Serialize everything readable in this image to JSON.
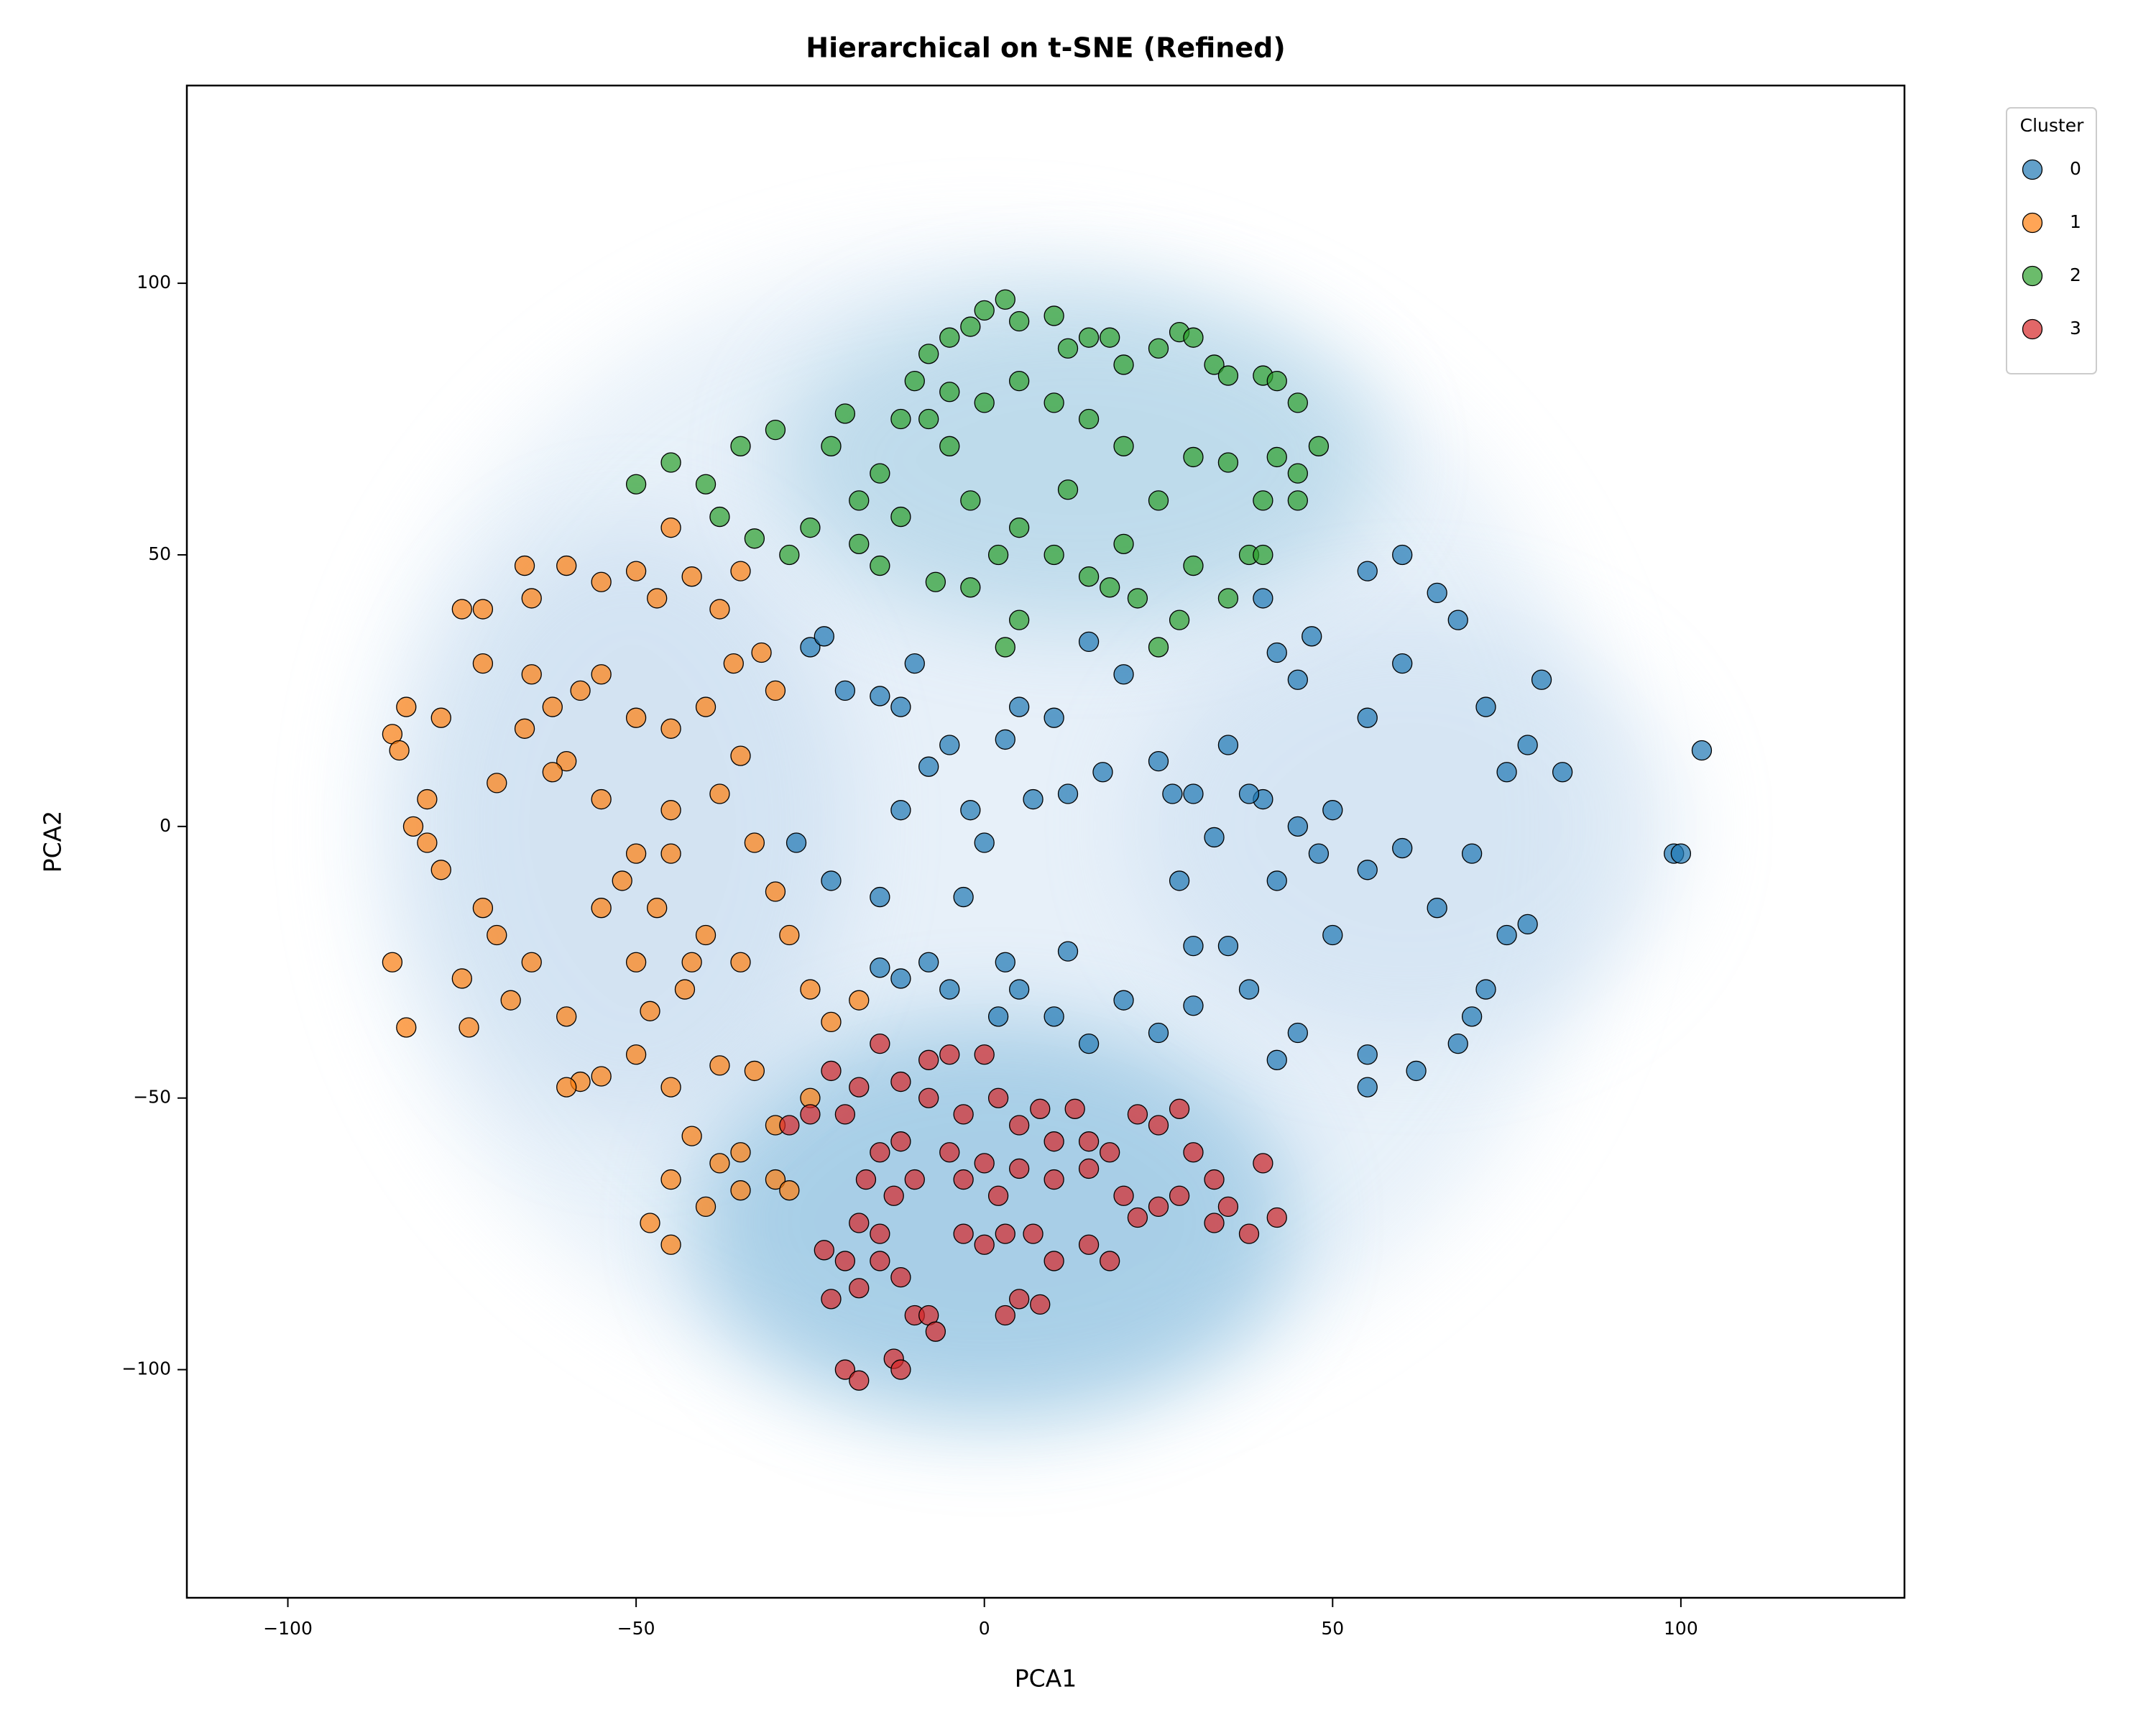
{
  "chart_data": {
    "type": "scatter",
    "title": "Hierarchical on t-SNE (Refined)",
    "x_label": "PCA1",
    "y_label": "PCA2",
    "legend_title": "Cluster",
    "legend": "outside upper right",
    "xlim": [
      -114.5,
      132.1
    ],
    "ylim": [
      -142,
      136.4
    ],
    "xticks": [
      {
        "value": -100,
        "label": "−100"
      },
      {
        "value": -50,
        "label": "−50"
      },
      0,
      50,
      100
    ],
    "yticks": [
      {
        "value": -100,
        "label": "−100"
      },
      {
        "value": -50,
        "label": "−50"
      },
      0,
      50,
      100
    ],
    "series": [
      {
        "name": "0",
        "color": "#1f77b4",
        "x": [
          -25,
          -23,
          -20,
          -15,
          -10,
          -12,
          -5,
          -8,
          -2,
          -12,
          -27,
          -22,
          -15,
          -8,
          -12,
          -5,
          3,
          5,
          12,
          10,
          15,
          20,
          25,
          30,
          35,
          28,
          33,
          40,
          45,
          48,
          42,
          50,
          55,
          60,
          65,
          70,
          75,
          78,
          72,
          68,
          55,
          55,
          62,
          70,
          60,
          55,
          60,
          65,
          68,
          72,
          78,
          75,
          83,
          80,
          99,
          100,
          103,
          45,
          47,
          40,
          42,
          20,
          15,
          5,
          10,
          3,
          7,
          0,
          12,
          17,
          25,
          27,
          30,
          35,
          38,
          30,
          38,
          45,
          42,
          -3,
          2,
          -15,
          55,
          50
        ],
        "values": [
          33,
          35,
          25,
          24,
          30,
          22,
          15,
          11,
          3,
          3,
          -3,
          -10,
          -13,
          -25,
          -28,
          -30,
          -25,
          -30,
          -23,
          -35,
          -40,
          -32,
          -38,
          -22,
          -22,
          -10,
          -2,
          5,
          0,
          -5,
          -10,
          -20,
          -8,
          -4,
          -15,
          -5,
          -20,
          -18,
          -30,
          -40,
          -42,
          -48,
          -45,
          -35,
          30,
          47,
          50,
          43,
          38,
          22,
          15,
          10,
          10,
          27,
          -5,
          -5,
          14,
          27,
          35,
          42,
          32,
          28,
          34,
          22,
          20,
          16,
          5,
          -3,
          6,
          10,
          12,
          6,
          6,
          15,
          6,
          -33,
          -30,
          -38,
          -43,
          -13,
          -35,
          -26,
          20,
          3
        ]
      },
      {
        "name": "1",
        "color": "#ff7f0e",
        "x": [
          -85,
          -83,
          -84,
          -80,
          -82,
          -78,
          -85,
          -83,
          -75,
          -72,
          -74,
          -68,
          -70,
          -65,
          -60,
          -58,
          -55,
          -60,
          -50,
          -45,
          -43,
          -47,
          -40,
          -35,
          -30,
          -28,
          -25,
          -22,
          -33,
          -38,
          -42,
          -45,
          -48,
          -45,
          -40,
          -35,
          -30,
          -35,
          -30,
          -38,
          -28,
          -25,
          -18,
          -33,
          -38,
          -45,
          -50,
          -52,
          -55,
          -60,
          -62,
          -66,
          -70,
          -72,
          -75,
          -72,
          -65,
          -66,
          -60,
          -55,
          -50,
          -47,
          -45,
          -42,
          -38,
          -35,
          -36,
          -32,
          -30,
          -35,
          -40,
          -45,
          -50,
          -55,
          -58,
          -62,
          -65,
          -78,
          -80,
          -55,
          -50,
          -45,
          -42,
          -48
        ],
        "values": [
          17,
          22,
          14,
          5,
          0,
          -8,
          -25,
          -37,
          -28,
          -15,
          -37,
          -32,
          -20,
          -25,
          -35,
          -47,
          -46,
          -48,
          -42,
          -48,
          -30,
          -15,
          -20,
          -25,
          -12,
          -20,
          -30,
          -36,
          -45,
          -44,
          -57,
          -65,
          -73,
          -77,
          -70,
          -67,
          -65,
          -60,
          -55,
          -62,
          -67,
          -50,
          -32,
          -3,
          6,
          3,
          -5,
          -10,
          5,
          12,
          10,
          18,
          8,
          30,
          40,
          40,
          42,
          48,
          48,
          45,
          47,
          42,
          55,
          46,
          40,
          47,
          30,
          32,
          25,
          13,
          22,
          18,
          20,
          28,
          25,
          22,
          28,
          20,
          -3,
          -15,
          -25,
          -5,
          -25,
          -34
        ]
      },
      {
        "name": "2",
        "color": "#2ca02c",
        "x": [
          -50,
          -45,
          -40,
          -35,
          -30,
          -38,
          -33,
          -28,
          -25,
          -22,
          -20,
          -18,
          -15,
          -12,
          -10,
          -8,
          -5,
          -2,
          0,
          3,
          5,
          10,
          12,
          15,
          18,
          20,
          25,
          28,
          30,
          33,
          35,
          40,
          42,
          45,
          48,
          45,
          40,
          38,
          35,
          30,
          28,
          22,
          18,
          15,
          10,
          5,
          2,
          -2,
          -5,
          -8,
          -12,
          -15,
          -18,
          -7,
          -2,
          5,
          3,
          20,
          25,
          30,
          35,
          20,
          15,
          10,
          5,
          0,
          -5,
          12,
          25,
          40,
          42,
          45
        ],
        "values": [
          63,
          67,
          63,
          70,
          73,
          57,
          53,
          50,
          55,
          70,
          76,
          60,
          65,
          75,
          82,
          87,
          90,
          92,
          95,
          97,
          93,
          94,
          88,
          90,
          90,
          85,
          88,
          91,
          90,
          85,
          83,
          83,
          82,
          78,
          70,
          65,
          60,
          50,
          42,
          48,
          38,
          42,
          44,
          46,
          50,
          55,
          50,
          60,
          70,
          75,
          57,
          48,
          52,
          45,
          44,
          38,
          33,
          52,
          60,
          68,
          67,
          70,
          75,
          78,
          82,
          78,
          80,
          62,
          33,
          50,
          68,
          60
        ]
      },
      {
        "name": "3",
        "color": "#d62728",
        "x": [
          -25,
          -28,
          -22,
          -20,
          -18,
          -15,
          -12,
          -8,
          -5,
          0,
          2,
          5,
          8,
          10,
          13,
          15,
          18,
          22,
          25,
          28,
          30,
          33,
          35,
          40,
          42,
          38,
          33,
          28,
          25,
          22,
          18,
          15,
          10,
          7,
          3,
          0,
          -3,
          3,
          5,
          8,
          -15,
          -18,
          -20,
          -23,
          -22,
          -20,
          -18,
          -13,
          -12,
          -10,
          -8,
          -7,
          -12,
          -15,
          -18,
          -10,
          -5,
          -3,
          0,
          2,
          5,
          -12,
          -15,
          -17,
          -13,
          10,
          15,
          20,
          -8,
          -3
        ],
        "values": [
          -53,
          -55,
          -45,
          -53,
          -48,
          -40,
          -47,
          -43,
          -42,
          -42,
          -50,
          -55,
          -52,
          -58,
          -52,
          -58,
          -60,
          -53,
          -55,
          -52,
          -60,
          -65,
          -70,
          -62,
          -72,
          -75,
          -73,
          -68,
          -70,
          -72,
          -80,
          -77,
          -80,
          -75,
          -75,
          -77,
          -75,
          -90,
          -87,
          -88,
          -80,
          -85,
          -80,
          -78,
          -87,
          -100,
          -102,
          -98,
          -100,
          -90,
          -90,
          -93,
          -83,
          -75,
          -73,
          -65,
          -60,
          -65,
          -62,
          -68,
          -63,
          -58,
          -60,
          -65,
          -68,
          -65,
          -63,
          -68,
          -50,
          -53
        ]
      }
    ]
  }
}
